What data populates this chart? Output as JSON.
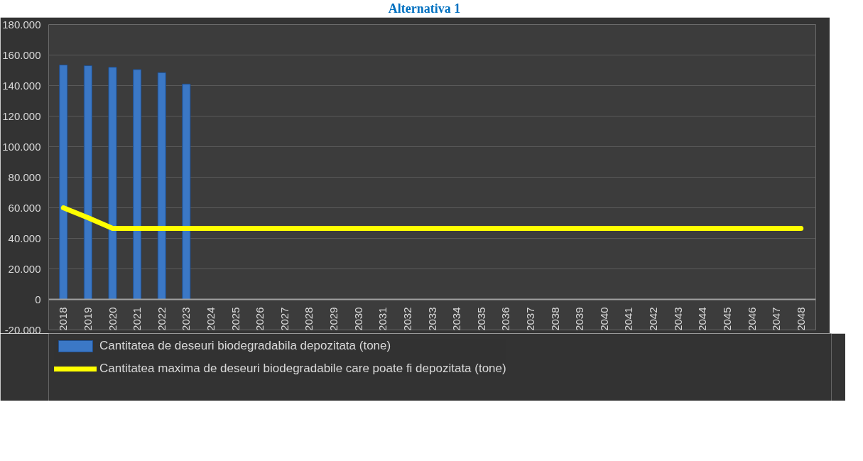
{
  "chart_data": {
    "type": "bar",
    "title": "Alternativa 1",
    "categories": [
      "2018",
      "2019",
      "2020",
      "2021",
      "2022",
      "2023",
      "2024",
      "2025",
      "2026",
      "2027",
      "2028",
      "2029",
      "2030",
      "2031",
      "2032",
      "2033",
      "2034",
      "2035",
      "2036",
      "2037",
      "2038",
      "2039",
      "2040",
      "2041",
      "2042",
      "2043",
      "2044",
      "2045",
      "2046",
      "2047",
      "2048"
    ],
    "series": [
      {
        "name": "Cantitatea de deseuri biodegradabila depozitata (tone)",
        "color": "#3b78c6",
        "values": [
          153500,
          153000,
          152000,
          150500,
          148500,
          141000,
          null,
          null,
          null,
          null,
          null,
          null,
          null,
          null,
          null,
          null,
          null,
          null,
          null,
          null,
          null,
          null,
          null,
          null,
          null,
          null,
          null,
          null,
          null,
          null,
          null
        ]
      },
      {
        "name": "Cantitatea maxima de deseuri biodegradabile care poate fi depozitata (tone)",
        "type": "line",
        "color": "#ffff00",
        "values": [
          60000,
          53500,
          46500,
          46500,
          46500,
          46500,
          46500,
          46500,
          46500,
          46500,
          46500,
          46500,
          46500,
          46500,
          46500,
          46500,
          46500,
          46500,
          46500,
          46500,
          46500,
          46500,
          46500,
          46500,
          46500,
          46500,
          46500,
          46500,
          46500,
          46500,
          46500
        ]
      }
    ],
    "ylim": [
      -20000,
      180000
    ],
    "yticks": [
      {
        "value": -20000,
        "label": "-20.000"
      },
      {
        "value": 0,
        "label": "0"
      },
      {
        "value": 20000,
        "label": "20.000"
      },
      {
        "value": 40000,
        "label": "40.000"
      },
      {
        "value": 60000,
        "label": "60.000"
      },
      {
        "value": 80000,
        "label": "80.000"
      },
      {
        "value": 100000,
        "label": "100.000"
      },
      {
        "value": 120000,
        "label": "120.000"
      },
      {
        "value": 140000,
        "label": "140.000"
      },
      {
        "value": 160000,
        "label": "160.000"
      },
      {
        "value": 180000,
        "label": "180.000"
      }
    ],
    "grid": "y",
    "legend": "bottom",
    "marker": "none",
    "line_style": "solid"
  }
}
